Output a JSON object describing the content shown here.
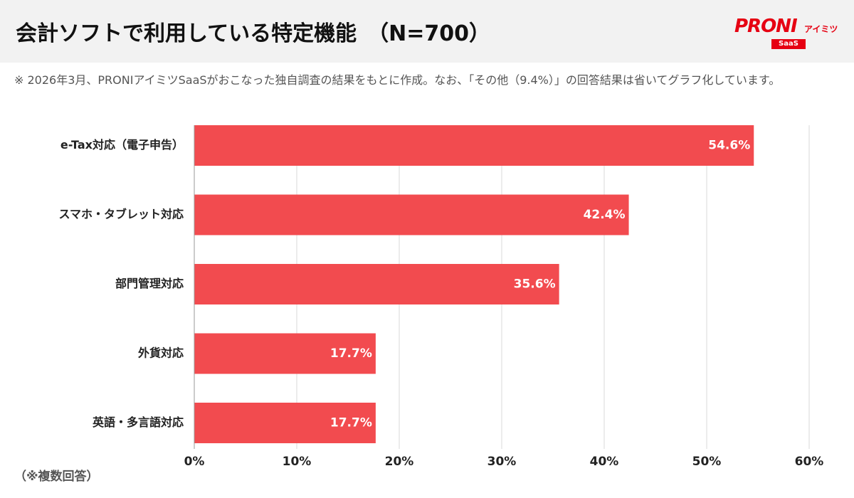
{
  "chart_data": {
    "type": "barh",
    "title": "会計ソフトで利用している特定機能　（N=700）",
    "subtitle": "※ 2026年3月、PRONIアイミツSaaSがおこなった独自調査の結果をもとに作成。なお、「その他（9.4%）」の回答結果は省いてグラフ化しています。",
    "annotation": "（※複数回答）",
    "categories": [
      "e-Tax対応（電子申告）",
      "スマホ・タブレット対応",
      "部門管理対応",
      "外貨対応",
      "英語・多言語対応"
    ],
    "values": [
      54.6,
      42.4,
      35.6,
      17.7,
      17.7
    ],
    "value_labels": [
      "54.6%",
      "42.4%",
      "35.6%",
      "17.7%",
      "17.7%"
    ],
    "color": "#f24b4f",
    "xlim": [
      0,
      60
    ],
    "xticks": [
      {
        "value": 0,
        "label": "0%"
      },
      {
        "value": 10,
        "label": "10%"
      },
      {
        "value": 20,
        "label": "20%"
      },
      {
        "value": 30,
        "label": "30%"
      },
      {
        "value": 40,
        "label": "40%"
      },
      {
        "value": 50,
        "label": "50%"
      },
      {
        "value": 60,
        "label": "60%"
      }
    ],
    "grid": true
  },
  "logo": {
    "name": "PRONI",
    "sub": "アイミツ",
    "badge": "SaaS"
  }
}
